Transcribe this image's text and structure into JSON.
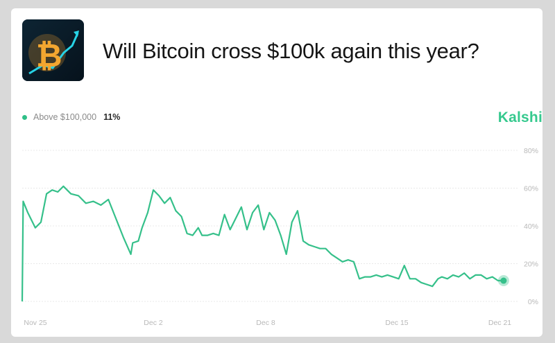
{
  "header": {
    "title": "Will Bitcoin cross $100k again this year?",
    "thumbnail_icon": "bitcoin-icon"
  },
  "legend": {
    "series_label": "Above $100,000",
    "current_value": "11%"
  },
  "brand": {
    "name": "Kalshi"
  },
  "colors": {
    "line": "#35c08a",
    "grid": "#e8e8e8",
    "brand": "#35c98e"
  },
  "chart_data": {
    "type": "line",
    "title": "Will Bitcoin cross $100k again this year?",
    "ylim": [
      0,
      80
    ],
    "y_ticks": [
      0,
      20,
      40,
      60,
      80
    ],
    "y_tick_labels": [
      "0%",
      "20%",
      "40%",
      "60%",
      "80%"
    ],
    "x_range": [
      0,
      26
    ],
    "x_ticks": [
      0,
      7,
      13,
      20,
      25.5
    ],
    "x_tick_labels": [
      "Nov 25",
      "Dec 2",
      "Dec 8",
      "Dec 15",
      "Dec 21"
    ],
    "series": [
      {
        "name": "Above $100,000",
        "x": [
          0,
          0.05,
          0.3,
          0.7,
          1.0,
          1.3,
          1.6,
          1.9,
          2.2,
          2.6,
          3.0,
          3.4,
          3.8,
          4.2,
          4.6,
          5.0,
          5.4,
          5.8,
          5.9,
          6.2,
          6.4,
          6.7,
          7.0,
          7.3,
          7.6,
          7.9,
          8.2,
          8.5,
          8.8,
          9.1,
          9.4,
          9.6,
          9.9,
          10.2,
          10.5,
          10.8,
          11.1,
          11.4,
          11.7,
          12.0,
          12.3,
          12.6,
          12.9,
          13.2,
          13.5,
          13.8,
          14.1,
          14.4,
          14.7,
          15.0,
          15.3,
          15.6,
          15.9,
          16.2,
          16.5,
          16.8,
          17.1,
          17.4,
          17.7,
          18.0,
          18.3,
          18.6,
          18.9,
          19.2,
          19.5,
          19.8,
          20.1,
          20.4,
          20.7,
          21.0,
          21.3,
          21.6,
          21.9,
          22.2,
          22.4,
          22.7,
          23.0,
          23.3,
          23.6,
          23.9,
          24.2,
          24.5,
          24.8,
          25.1,
          25.4,
          25.7
        ],
        "values": [
          0,
          53,
          47,
          39,
          42,
          57,
          59,
          58,
          61,
          57,
          56,
          52,
          53,
          51,
          54,
          44,
          34,
          25,
          31,
          32,
          39,
          47,
          59,
          56,
          52,
          55,
          48,
          45,
          36,
          35,
          39,
          35,
          35,
          36,
          35,
          46,
          38,
          44,
          50,
          38,
          47,
          51,
          38,
          47,
          43,
          35,
          25,
          42,
          48,
          32,
          30,
          29,
          28,
          28,
          25,
          23,
          21,
          22,
          21,
          12,
          13,
          13,
          14,
          13,
          14,
          13,
          12,
          19,
          12,
          12,
          10,
          9,
          8,
          12,
          13,
          12,
          14,
          13,
          15,
          12,
          14,
          14,
          12,
          13,
          11,
          11
        ]
      }
    ]
  }
}
